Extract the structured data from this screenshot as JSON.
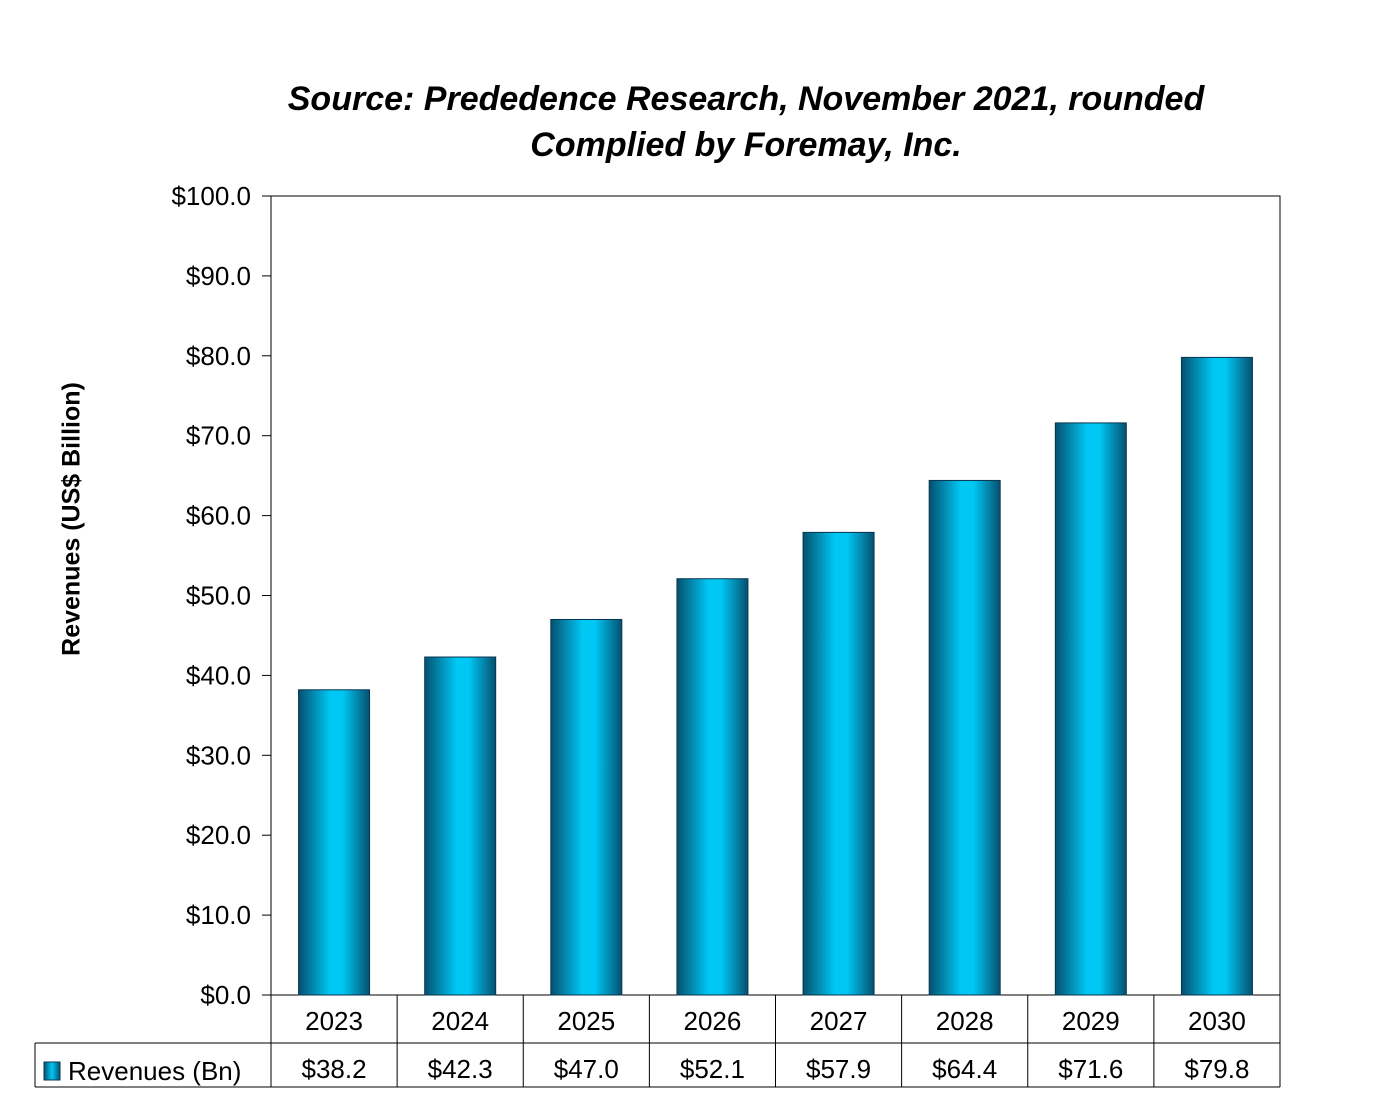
{
  "chart_data": {
    "type": "bar",
    "title": "Source: Prededence Research, November 2021, rounded",
    "subtitle": "Complied by Foremay, Inc.",
    "ylabel": "Revenues (US$ Billion)",
    "xlabel": "",
    "ylim": [
      0,
      100
    ],
    "y_ticks": [
      "$0.0",
      "$10.0",
      "$20.0",
      "$30.0",
      "$40.0",
      "$50.0",
      "$60.0",
      "$70.0",
      "$80.0",
      "$90.0",
      "$100.0"
    ],
    "categories": [
      "2023",
      "2024",
      "2025",
      "2026",
      "2027",
      "2028",
      "2029",
      "2030"
    ],
    "series": [
      {
        "name": "Revenues (Bn)",
        "values": [
          38.2,
          42.3,
          47.0,
          52.1,
          57.9,
          64.4,
          71.6,
          79.8
        ],
        "value_labels": [
          "$38.2",
          "$42.3",
          "$47.0",
          "$52.1",
          "$57.9",
          "$64.4",
          "$71.6",
          "$79.8"
        ],
        "color": "#00bfef"
      }
    ],
    "grid": false,
    "legend": "data-table-bottom",
    "data_table": true
  }
}
